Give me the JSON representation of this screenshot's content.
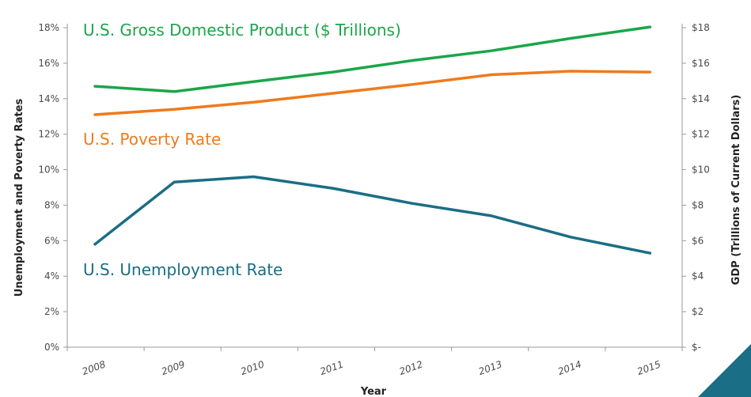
{
  "chart_data": {
    "type": "line",
    "categories": [
      "2008",
      "2009",
      "2010",
      "2011",
      "2012",
      "2013",
      "2014",
      "2015"
    ],
    "xlabel": "Year",
    "ylabel_left": "Unemployment and Poverty Rates",
    "ylabel_right": "GDP (Trillions of Current Dollars)",
    "y_left": {
      "min": 0,
      "max": 18,
      "step": 2,
      "tick_labels": [
        "0%",
        "2%",
        "4%",
        "6%",
        "8%",
        "10%",
        "12%",
        "14%",
        "16%",
        "18%"
      ]
    },
    "y_right": {
      "min": 0,
      "max": 18,
      "step": 2,
      "tick_labels": [
        "$-",
        "$2",
        "$4",
        "$6",
        "$8",
        "$10",
        "$12",
        "$14",
        "$16",
        "$18"
      ]
    },
    "grid": false,
    "series": [
      {
        "name": "U.S. Gross Domestic Product ($ Trillions)",
        "axis": "right",
        "color": "#1aa64a",
        "values": [
          14.7,
          14.4,
          14.96,
          15.5,
          16.15,
          16.7,
          17.4,
          18.04
        ]
      },
      {
        "name": "U.S. Poverty Rate",
        "axis": "left",
        "color": "#f07a1c",
        "values": [
          13.1,
          13.4,
          13.8,
          14.3,
          14.8,
          15.35,
          15.55,
          15.5
        ]
      },
      {
        "name": "U.S. Unemployment Rate",
        "axis": "left",
        "color": "#1a6e85",
        "values": [
          5.8,
          9.3,
          9.6,
          8.95,
          8.1,
          7.4,
          6.2,
          5.3
        ]
      }
    ]
  },
  "decoration": {
    "corner_color": "#1a6e85"
  }
}
